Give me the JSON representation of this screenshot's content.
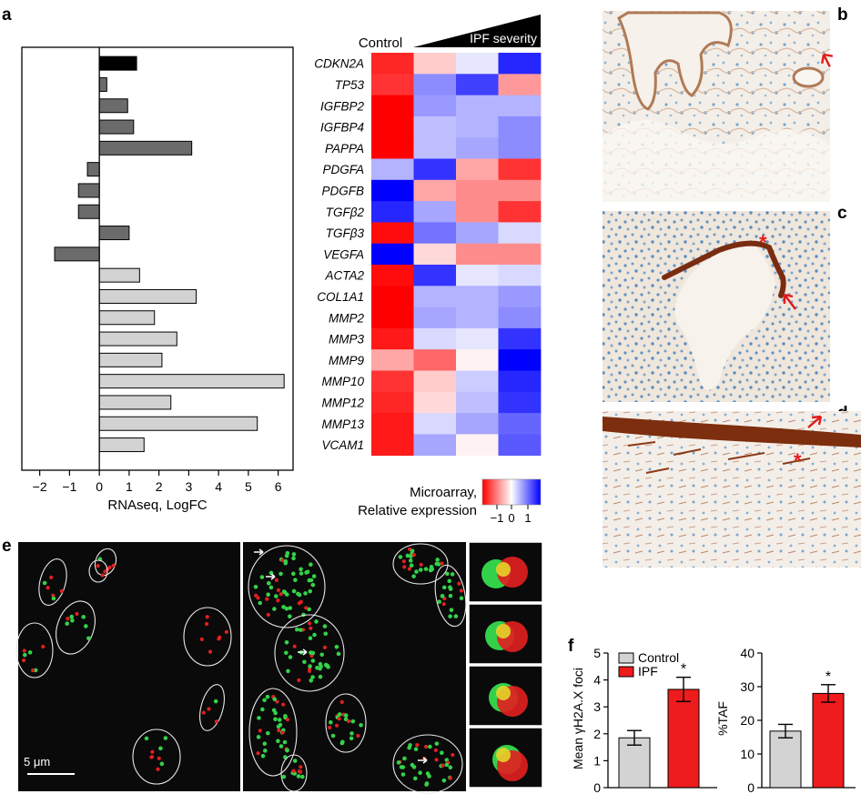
{
  "panel_labels": {
    "a": "a",
    "b": "b",
    "c": "c",
    "d": "d",
    "e": "e",
    "f": "f"
  },
  "colors": {
    "black_bar": "#000000",
    "dark_gray_bar": "#6b6b6b",
    "light_gray_bar": "#d2d2d2",
    "heatmap_low": "#ff0000",
    "heatmap_mid": "#ffffff",
    "heatmap_high": "#0000ff",
    "control_bar": "#d3d3d3",
    "ipf_bar": "#ee1c1c",
    "ihc_background": "#f2ece4",
    "ihc_nuclei": "#6a9ec8",
    "ihc_stain": "#8b3a16",
    "fish_background": "#0a0a0a",
    "fish_green": "#33d14a",
    "fish_red": "#e02020"
  },
  "chart_data": [
    {
      "type": "bar",
      "orientation": "horizontal",
      "categories": [
        "CDKN2A",
        "TP53",
        "IGFBP2",
        "IGFBP4",
        "PAPPA",
        "PDGFA",
        "PDGFB",
        "TGFβ2",
        "TGFβ3",
        "VEGFA",
        "ACTA2",
        "COL1A1",
        "MMP2",
        "MMP3",
        "MMP9",
        "MMP10",
        "MMP12",
        "MMP13",
        "VCAM1"
      ],
      "values": [
        1.25,
        0.25,
        0.95,
        1.15,
        3.1,
        -0.4,
        -0.7,
        -0.7,
        1.0,
        -1.5,
        1.35,
        3.25,
        1.85,
        2.6,
        2.1,
        6.2,
        2.4,
        5.3,
        1.5
      ],
      "groups": [
        "black",
        "dark",
        "dark",
        "dark",
        "dark",
        "dark",
        "dark",
        "dark",
        "dark",
        "dark",
        "light",
        "light",
        "light",
        "light",
        "light",
        "light",
        "light",
        "light",
        "light"
      ],
      "xlabel": "RNAseq, LogFC",
      "xlim": [
        -2.6,
        6.5
      ],
      "xticks": [
        -2,
        -1,
        0,
        1,
        2,
        3,
        4,
        5,
        6
      ],
      "xtick_labels": [
        "−2",
        "−1",
        "0",
        "1",
        "2",
        "3",
        "4",
        "5",
        "6"
      ]
    },
    {
      "type": "heatmap",
      "rows": [
        "CDKN2A",
        "TP53",
        "IGFBP2",
        "IGFBP4",
        "PAPPA",
        "PDGFA",
        "PDGFB",
        "TGFβ2",
        "TGFβ3",
        "VEGFA",
        "ACTA2",
        "COL1A1",
        "MMP2",
        "MMP3",
        "MMP9",
        "MMP10",
        "MMP12",
        "MMP13",
        "VCAM1"
      ],
      "column_header_control": "Control",
      "column_header_ipf": "IPF severity",
      "values": [
        [
          -0.85,
          -0.2,
          0.1,
          0.85
        ],
        [
          -0.8,
          0.45,
          0.75,
          -0.4
        ],
        [
          -1.0,
          0.4,
          0.3,
          0.3
        ],
        [
          -1.0,
          0.25,
          0.3,
          0.45
        ],
        [
          -1.0,
          0.25,
          0.35,
          0.45
        ],
        [
          0.3,
          0.8,
          -0.35,
          -0.8
        ],
        [
          1.0,
          -0.35,
          -0.45,
          -0.45
        ],
        [
          0.85,
          0.35,
          -0.45,
          -0.8
        ],
        [
          -0.95,
          0.55,
          0.35,
          0.15
        ],
        [
          1.0,
          -0.15,
          -0.45,
          -0.45
        ],
        [
          -0.95,
          0.8,
          0.1,
          0.15
        ],
        [
          -1.0,
          0.3,
          0.3,
          0.4
        ],
        [
          -1.0,
          0.35,
          0.3,
          0.45
        ],
        [
          -0.9,
          0.15,
          0.1,
          0.8
        ],
        [
          -0.35,
          -0.6,
          -0.05,
          1.0
        ],
        [
          -0.8,
          -0.2,
          0.2,
          0.85
        ],
        [
          -0.85,
          -0.15,
          0.25,
          0.8
        ],
        [
          -0.9,
          0.15,
          0.35,
          0.6
        ],
        [
          -0.9,
          0.35,
          -0.05,
          0.65
        ]
      ],
      "colorbar_label_1": "Microarray,",
      "colorbar_label_2": "Relative expression",
      "colorbar_ticks": [
        "−1",
        "0",
        "1"
      ],
      "vmin": -1,
      "vmax": 1
    },
    {
      "type": "bar",
      "categories": [
        "Control",
        "IPF"
      ],
      "values": [
        1.85,
        3.65
      ],
      "errors": [
        0.27,
        0.45
      ],
      "ylabel": "Mean γH2A.X foci",
      "ylim": [
        0,
        5
      ],
      "yticks": [
        "0",
        "1",
        "2",
        "3",
        "4",
        "5"
      ],
      "legend": [
        "Control",
        "IPF"
      ],
      "significance": "*"
    },
    {
      "type": "bar",
      "categories": [
        "Control",
        "IPF"
      ],
      "values": [
        16.8,
        28.0
      ],
      "errors": [
        2.0,
        2.6
      ],
      "ylabel": "%TAF",
      "ylim": [
        0,
        40
      ],
      "yticks": [
        "0",
        "10",
        "20",
        "30",
        "40"
      ],
      "significance": "*"
    }
  ],
  "micrograph_annotations": {
    "scale_bar": "5 μm",
    "asterisk": "*"
  }
}
